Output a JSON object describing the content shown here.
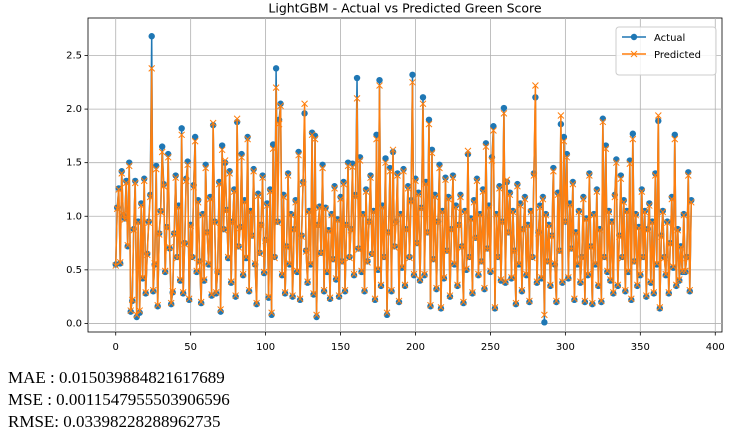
{
  "chart_data": {
    "type": "line",
    "title": "LightGBM - Actual vs Predicted Green Score",
    "x": [
      0,
      1,
      2,
      3,
      4,
      5,
      6,
      7,
      8,
      9,
      10,
      11,
      12,
      13,
      14,
      15,
      16,
      17,
      18,
      19,
      20,
      21,
      22,
      23,
      24,
      25,
      26,
      27,
      28,
      29,
      30,
      31,
      32,
      33,
      34,
      35,
      36,
      37,
      38,
      39,
      40,
      41,
      42,
      43,
      44,
      45,
      46,
      47,
      48,
      49,
      50,
      51,
      52,
      53,
      54,
      55,
      56,
      57,
      58,
      59,
      60,
      61,
      62,
      63,
      64,
      65,
      66,
      67,
      68,
      69,
      70,
      71,
      72,
      73,
      74,
      75,
      76,
      77,
      78,
      79,
      80,
      81,
      82,
      83,
      84,
      85,
      86,
      87,
      88,
      89,
      90,
      91,
      92,
      93,
      94,
      95,
      96,
      97,
      98,
      99,
      100,
      101,
      102,
      103,
      104,
      105,
      106,
      107,
      108,
      109,
      110,
      111,
      112,
      113,
      114,
      115,
      116,
      117,
      118,
      119,
      120,
      121,
      122,
      123,
      124,
      125,
      126,
      127,
      128,
      129,
      130,
      131,
      132,
      133,
      134,
      135,
      136,
      137,
      138,
      139,
      140,
      141,
      142,
      143,
      144,
      145,
      146,
      147,
      148,
      149,
      150,
      151,
      152,
      153,
      154,
      155,
      156,
      157,
      158,
      159,
      160,
      161,
      162,
      163,
      164,
      165,
      166,
      167,
      168,
      169,
      170,
      171,
      172,
      173,
      174,
      175,
      176,
      177,
      178,
      179,
      180,
      181,
      182,
      183,
      184,
      185,
      186,
      187,
      188,
      189,
      190,
      191,
      192,
      193,
      194,
      195,
      196,
      197,
      198,
      199,
      200,
      201,
      202,
      203,
      204,
      205,
      206,
      207,
      208,
      209,
      210,
      211,
      212,
      213,
      214,
      215,
      216,
      217,
      218,
      219,
      220,
      221,
      222,
      223,
      224,
      225,
      226,
      227,
      228,
      229,
      230,
      231,
      232,
      233,
      234,
      235,
      236,
      237,
      238,
      239,
      240,
      241,
      242,
      243,
      244,
      245,
      246,
      247,
      248,
      249,
      250,
      251,
      252,
      253,
      254,
      255,
      256,
      257,
      258,
      259,
      260,
      261,
      262,
      263,
      264,
      265,
      266,
      267,
      268,
      269,
      270,
      271,
      272,
      273,
      274,
      275,
      276,
      277,
      278,
      279,
      280,
      281,
      282,
      283,
      284,
      285,
      286,
      287,
      288,
      289,
      290,
      291,
      292,
      293,
      294,
      295,
      296,
      297,
      298,
      299,
      300,
      301,
      302,
      303,
      304,
      305,
      306,
      307,
      308,
      309,
      310,
      311,
      312,
      313,
      314,
      315,
      316,
      317,
      318,
      319,
      320,
      321,
      322,
      323,
      324,
      325,
      326,
      327,
      328,
      329,
      330,
      331,
      332,
      333,
      334,
      335,
      336,
      337,
      338,
      339,
      340,
      341,
      342,
      343,
      344,
      345,
      346,
      347,
      348,
      349,
      350,
      351,
      352,
      353,
      354,
      355,
      356,
      357,
      358,
      359,
      360,
      361,
      362,
      363,
      364,
      365,
      366,
      367,
      368,
      369,
      370,
      371,
      372,
      373,
      374,
      375,
      376,
      377,
      378,
      379,
      380,
      381,
      382,
      383,
      384
    ],
    "series": [
      {
        "name": "Actual",
        "color": "#1f77b4",
        "marker": "circle",
        "values": [
          0.55,
          1.08,
          1.26,
          0.56,
          1.42,
          1.01,
          0.98,
          1.33,
          0.72,
          1.5,
          0.11,
          0.21,
          0.88,
          1.33,
          0.06,
          0.95,
          0.1,
          1.12,
          0.42,
          1.35,
          0.28,
          0.65,
          0.95,
          1.2,
          2.68,
          0.3,
          0.55,
          1.47,
          0.16,
          0.84,
          1.05,
          1.65,
          1.3,
          0.48,
          0.9,
          1.58,
          0.7,
          0.18,
          0.29,
          0.84,
          1.38,
          0.62,
          1.1,
          0.4,
          1.82,
          0.28,
          0.75,
          1.35,
          1.51,
          0.22,
          0.92,
          0.62,
          1.29,
          1.74,
          0.48,
          1.15,
          0.58,
          0.19,
          1.02,
          0.4,
          1.48,
          0.85,
          0.55,
          1.18,
          0.26,
          1.85,
          0.95,
          0.28,
          0.48,
          1.32,
          0.11,
          1.66,
          0.88,
          1.5,
          1.06,
          0.61,
          1.42,
          0.38,
          0.95,
          1.25,
          0.25,
          1.88,
          0.72,
          0.9,
          1.58,
          0.45,
          1.15,
          0.61,
          1.74,
          0.3,
          1.05,
          0.82,
          1.44,
          0.55,
          0.18,
          1.21,
          0.66,
          0.92,
          1.38,
          0.47,
          0.78,
          1.12,
          0.24,
          1.25,
          0.08,
          1.67,
          0.62,
          2.38,
          0.95,
          1.9,
          2.05,
          0.45,
          1.2,
          0.28,
          0.72,
          1.4,
          0.55,
          1.02,
          0.25,
          0.88,
          1.15,
          0.48,
          1.6,
          0.22,
          0.82,
          1.32,
          1.96,
          0.68,
          0.38,
          1.05,
          0.55,
          1.78,
          0.27,
          1.75,
          0.06,
          0.92,
          1.09,
          0.66,
          1.48,
          0.3,
          1.08,
          0.48,
          0.87,
          0.23,
          1.02,
          0.6,
          1.28,
          0.41,
          0.97,
          0.25,
          1.18,
          0.58,
          1.32,
          0.3,
          0.92,
          1.5,
          0.62,
          0.88,
          1.49,
          0.45,
          1.2,
          2.29,
          0.7,
          1.55,
          0.48,
          1.02,
          0.3,
          1.25,
          0.58,
          0.95,
          1.38,
          0.65,
          1.05,
          0.22,
          1.76,
          0.5,
          2.27,
          0.35,
          1.1,
          0.62,
          1.54,
          0.08,
          0.85,
          1.45,
          0.3,
          1.6,
          0.72,
          0.95,
          1.4,
          0.2,
          1.02,
          0.52,
          1.44,
          0.35,
          0.88,
          1.28,
          0.62,
          1.15,
          2.32,
          0.45,
          1.35,
          0.75,
          1.22,
          0.4,
          1.08,
          2.11,
          0.45,
          1.32,
          0.85,
          1.9,
          0.16,
          1.62,
          0.6,
          1.2,
          0.32,
          0.95,
          1.48,
          0.14,
          1.05,
          0.42,
          1.36,
          0.68,
          1.18,
          0.25,
          0.88,
          1.38,
          0.55,
          1.1,
          0.35,
          0.92,
          1.2,
          0.72,
          0.19,
          1.05,
          0.5,
          1.58,
          0.62,
          0.98,
          0.28,
          1.15,
          0.8,
          1.35,
          0.45,
          1.02,
          0.58,
          1.25,
          0.32,
          1.68,
          0.7,
          1.1,
          0.48,
          1.55,
          1.84,
          0.14,
          1.02,
          0.62,
          1.28,
          0.4,
          0.95,
          2.01,
          0.38,
          1.32,
          0.85,
          1.22,
          0.42,
          1.05,
          0.68,
          0.18,
          1.3,
          0.55,
          1.12,
          0.3,
          0.88,
          1.18,
          0.45,
          0.92,
          0.2,
          1.05,
          0.62,
          1.4,
          2.11,
          0.38,
          0.85,
          1.1,
          0.42,
          1.18,
          0.01,
          1.02,
          0.58,
          0.92,
          0.35,
          0.82,
          1.45,
          0.55,
          0.2,
          1.22,
          0.68,
          1.86,
          0.38,
          1.74,
          0.95,
          1.58,
          0.42,
          1.12,
          0.7,
          1.32,
          0.22,
          0.85,
          0.55,
          1.05,
          0.38,
          0.62,
          1.18,
          0.2,
          0.98,
          0.45,
          1.4,
          0.72,
          0.18,
          1.02,
          0.55,
          1.25,
          0.35,
          0.88,
          0.2,
          1.91,
          0.62,
          1.66,
          0.48,
          1.05,
          0.4,
          0.95,
          0.28,
          1.2,
          1.53,
          0.35,
          0.82,
          1.38,
          0.62,
          1.15,
          0.3,
          1.05,
          0.48,
          1.52,
          0.22,
          1.77,
          0.58,
          1.02,
          0.35,
          0.9,
          0.45,
          1.25,
          0.62,
          1.05,
          0.25,
          0.88,
          1.12,
          0.38,
          0.95,
          0.28,
          1.4,
          0.55,
          1.89,
          0.14,
          0.82,
          1.05,
          0.62,
          0.45,
          0.95,
          0.28,
          0.75,
          1.18,
          0.52,
          1.76,
          0.35,
          0.88,
          0.4,
          0.72,
          0.48,
          1.02,
          0.48,
          0.62,
          1.41,
          0.3,
          1.15
        ]
      },
      {
        "name": "Predicted",
        "color": "#ff7f0e",
        "marker": "x",
        "values": [
          0.54,
          1.07,
          1.25,
          0.57,
          1.4,
          1.02,
          0.97,
          1.31,
          0.73,
          1.47,
          0.12,
          0.22,
          0.87,
          1.31,
          0.08,
          0.94,
          0.12,
          1.1,
          0.43,
          1.33,
          0.29,
          0.64,
          0.94,
          1.18,
          2.38,
          0.31,
          0.56,
          1.44,
          0.17,
          0.83,
          1.04,
          1.6,
          1.28,
          0.49,
          0.89,
          1.55,
          0.71,
          0.19,
          0.3,
          0.83,
          1.36,
          0.61,
          1.08,
          0.41,
          1.76,
          0.29,
          0.74,
          1.33,
          1.48,
          0.23,
          0.91,
          0.61,
          1.27,
          1.7,
          0.49,
          1.13,
          0.57,
          0.2,
          1.01,
          0.41,
          1.45,
          0.84,
          0.56,
          1.16,
          0.27,
          1.87,
          0.94,
          0.29,
          0.49,
          1.3,
          0.13,
          1.62,
          0.87,
          1.52,
          1.05,
          0.62,
          1.4,
          0.39,
          0.94,
          1.23,
          0.26,
          1.91,
          0.71,
          0.89,
          1.55,
          0.46,
          1.13,
          0.62,
          1.72,
          0.31,
          1.04,
          0.81,
          1.42,
          0.56,
          0.19,
          1.19,
          0.65,
          0.91,
          1.36,
          0.48,
          0.77,
          1.1,
          0.25,
          1.23,
          0.1,
          1.63,
          0.61,
          2.2,
          0.94,
          1.86,
          2.03,
          0.46,
          1.18,
          0.29,
          0.71,
          1.38,
          0.56,
          1.01,
          0.26,
          0.87,
          1.13,
          0.49,
          1.57,
          0.23,
          0.81,
          1.3,
          2.05,
          0.67,
          0.39,
          1.04,
          0.56,
          1.76,
          0.28,
          1.72,
          0.08,
          0.91,
          1.08,
          0.65,
          1.45,
          0.31,
          1.07,
          0.49,
          0.86,
          0.24,
          1.01,
          0.59,
          1.26,
          0.42,
          0.96,
          0.26,
          1.16,
          0.57,
          1.3,
          0.31,
          0.91,
          1.47,
          0.61,
          0.87,
          1.46,
          0.46,
          1.18,
          2.1,
          0.69,
          1.52,
          0.49,
          1.01,
          0.31,
          1.23,
          0.57,
          0.94,
          1.36,
          0.64,
          1.04,
          0.23,
          1.72,
          0.51,
          2.22,
          0.36,
          1.08,
          0.61,
          1.5,
          0.1,
          0.84,
          1.42,
          0.31,
          1.62,
          0.71,
          0.94,
          1.38,
          0.21,
          1.01,
          0.53,
          1.42,
          0.36,
          0.87,
          1.26,
          0.61,
          1.13,
          2.25,
          0.46,
          1.33,
          0.74,
          1.2,
          0.41,
          1.07,
          2.05,
          0.46,
          1.3,
          0.84,
          1.86,
          0.17,
          1.59,
          0.59,
          1.18,
          0.33,
          0.94,
          1.45,
          0.15,
          1.04,
          0.43,
          1.34,
          0.67,
          1.16,
          0.26,
          0.87,
          1.36,
          0.56,
          1.08,
          0.36,
          0.91,
          1.18,
          0.71,
          0.2,
          1.04,
          0.51,
          1.61,
          0.61,
          0.97,
          0.29,
          1.13,
          0.79,
          1.33,
          0.46,
          1.01,
          0.57,
          1.23,
          0.33,
          1.65,
          0.69,
          1.08,
          0.49,
          1.52,
          1.8,
          0.15,
          1.01,
          0.61,
          1.26,
          0.41,
          0.94,
          1.96,
          0.39,
          1.34,
          0.84,
          1.2,
          0.43,
          1.04,
          0.67,
          0.19,
          1.28,
          0.56,
          1.1,
          0.31,
          0.87,
          1.16,
          0.46,
          0.91,
          0.21,
          1.04,
          0.61,
          1.38,
          2.22,
          0.39,
          0.84,
          1.08,
          0.43,
          1.16,
          0.08,
          1.01,
          0.57,
          0.91,
          0.36,
          0.81,
          1.42,
          0.56,
          0.21,
          1.2,
          0.67,
          1.94,
          0.39,
          1.7,
          0.94,
          1.55,
          0.43,
          1.1,
          0.69,
          1.3,
          0.23,
          0.84,
          0.56,
          1.04,
          0.39,
          0.61,
          1.16,
          0.21,
          0.97,
          0.46,
          1.38,
          0.71,
          0.19,
          1.01,
          0.56,
          1.23,
          0.36,
          0.87,
          0.21,
          1.88,
          0.61,
          1.63,
          0.49,
          1.04,
          0.41,
          0.94,
          0.29,
          1.18,
          1.5,
          0.36,
          0.81,
          1.35,
          0.61,
          1.13,
          0.31,
          1.04,
          0.49,
          1.49,
          0.23,
          1.72,
          0.57,
          1.01,
          0.36,
          0.89,
          0.46,
          1.23,
          0.61,
          1.04,
          0.26,
          0.87,
          1.1,
          0.39,
          0.94,
          0.29,
          1.38,
          0.56,
          1.94,
          0.15,
          0.81,
          1.04,
          0.61,
          0.46,
          0.94,
          0.29,
          0.74,
          1.16,
          0.53,
          1.72,
          0.36,
          0.87,
          0.41,
          0.71,
          0.49,
          1.01,
          0.49,
          0.61,
          1.38,
          0.31,
          1.13
        ]
      }
    ],
    "xlim": [
      -18.5,
      404.5
    ],
    "xticks": [
      0,
      50,
      100,
      150,
      200,
      250,
      300,
      350,
      400
    ],
    "ylim": [
      -0.08,
      2.85
    ],
    "yticks": [
      {
        "value": 0,
        "label": "0.0"
      },
      0.5,
      {
        "value": 1,
        "label": "1.0"
      },
      1.5,
      {
        "value": 2,
        "label": "2.0"
      },
      2.5
    ],
    "grid": true,
    "legend": "upper right"
  },
  "metrics": [
    "MAE : 0.015039884821617689",
    "MSE : 0.0011547955503906596",
    "RMSE: 0.03398228288962735"
  ]
}
